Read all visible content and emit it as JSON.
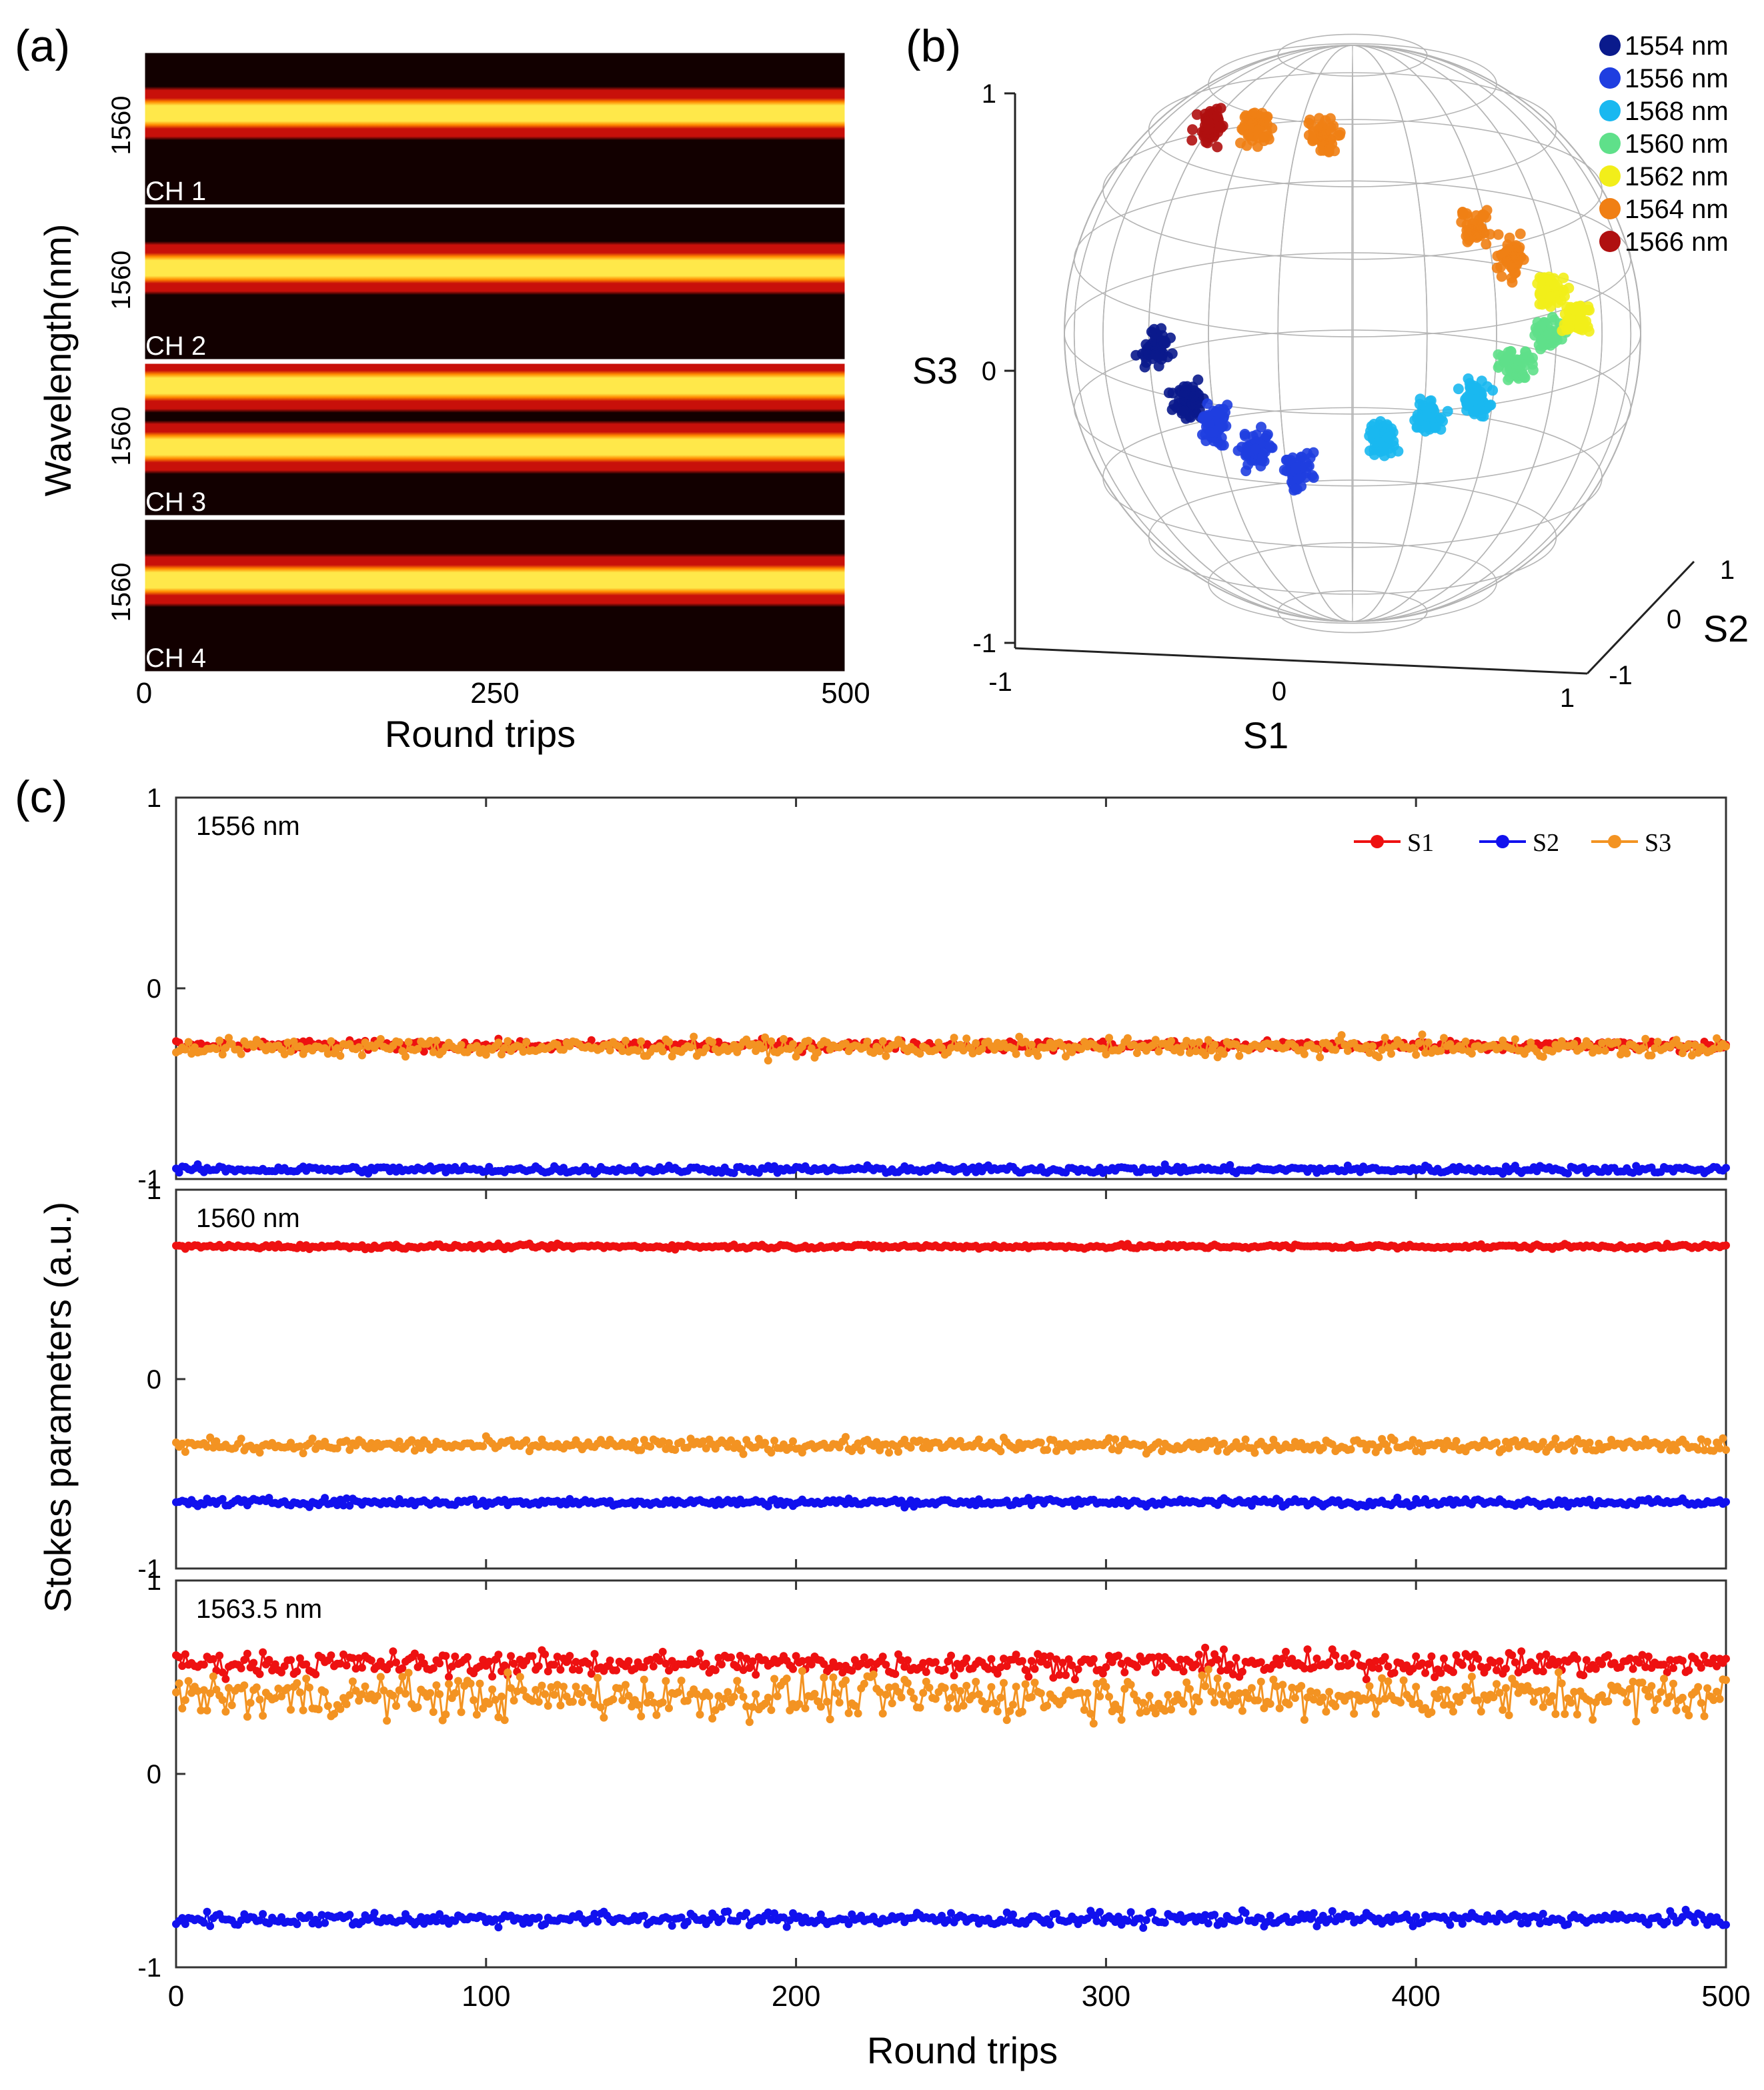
{
  "panel_labels": {
    "a": "(a)",
    "b": "(b)",
    "c": "(c)"
  },
  "colors": {
    "heat_dark": "#120000",
    "heat_mid": "#c8100a",
    "heat_hot": "#ff8a00",
    "heat_peak": "#ffe84a",
    "s1": "#ee1111",
    "s2": "#1111ee",
    "s3": "#f39322"
  },
  "chart_data": [
    {
      "id": "a",
      "type": "heatmap",
      "title": "",
      "xlabel": "Round trips",
      "ylabel": "Wavelength(nm)",
      "xlim": [
        0,
        500
      ],
      "x_ticks": [
        0,
        250,
        500
      ],
      "x_tick_labels": [
        "0",
        "250",
        "500"
      ],
      "channels": [
        {
          "name": "CH 1",
          "y_tick_label": "1560",
          "peaks": [
            0.6
          ]
        },
        {
          "name": "CH 2",
          "y_tick_label": "1560",
          "peaks": [
            0.6
          ]
        },
        {
          "name": "CH 3",
          "y_tick_label": "1560",
          "peaks": [
            0.85,
            0.45
          ]
        },
        {
          "name": "CH 4",
          "y_tick_label": "1560",
          "peaks": [
            0.6
          ]
        }
      ]
    },
    {
      "id": "b",
      "type": "scatter",
      "title": "",
      "axes": {
        "S1": {
          "label": "S1",
          "range": [
            -1,
            1
          ],
          "ticks": [
            "-1",
            "0",
            "1"
          ]
        },
        "S2": {
          "label": "S2",
          "range": [
            -1,
            1
          ],
          "ticks": [
            "-1",
            "0",
            "1"
          ]
        },
        "S3": {
          "label": "S3",
          "range": [
            -1,
            1
          ],
          "ticks": [
            "-1",
            "0",
            "1"
          ]
        }
      },
      "legend_position": "top-right",
      "series": [
        {
          "name": "1554 nm",
          "color": "#0a1a8c",
          "clusters": [
            [
              -0.72,
              -0.3,
              -0.05
            ],
            [
              -0.6,
              -0.3,
              -0.25
            ]
          ]
        },
        {
          "name": "1556 nm",
          "color": "#1f3ee0",
          "clusters": [
            [
              -0.5,
              -0.3,
              -0.33
            ],
            [
              -0.35,
              -0.3,
              -0.42
            ],
            [
              -0.2,
              -0.3,
              -0.5
            ]
          ]
        },
        {
          "name": "1568 nm",
          "color": "#19b8f0",
          "clusters": [
            [
              0.1,
              -0.3,
              -0.38
            ],
            [
              0.28,
              -0.3,
              -0.3
            ],
            [
              0.45,
              -0.3,
              -0.24
            ]
          ]
        },
        {
          "name": "1560 nm",
          "color": "#5fe08a",
          "clusters": [
            [
              0.6,
              -0.3,
              -0.12
            ],
            [
              0.72,
              -0.3,
              0.0
            ]
          ]
        },
        {
          "name": "1562 nm",
          "color": "#f2ee1a",
          "clusters": [
            [
              0.82,
              -0.3,
              0.06
            ],
            [
              0.72,
              -0.3,
              0.16
            ]
          ]
        },
        {
          "name": "1564 nm",
          "color": "#f07f14",
          "clusters": [
            [
              0.45,
              -0.3,
              0.38
            ],
            [
              0.58,
              -0.3,
              0.28
            ],
            [
              -0.1,
              -0.3,
              0.72
            ],
            [
              -0.35,
              -0.3,
              0.75
            ]
          ]
        },
        {
          "name": "1566 nm",
          "color": "#b01010",
          "clusters": [
            [
              -0.52,
              -0.3,
              0.76
            ]
          ]
        }
      ]
    },
    {
      "id": "c",
      "type": "line",
      "title": "",
      "xlabel": "Round trips",
      "ylabel": "Stokes parameters (a.u.)",
      "xlim": [
        0,
        500
      ],
      "ylim": [
        -1,
        1
      ],
      "x_tick_labels": [
        "0",
        "100",
        "200",
        "300",
        "400",
        "500"
      ],
      "y_tick_labels": [
        "-1",
        "0",
        "1"
      ],
      "legend_position": "top-right",
      "legend": [
        "S1",
        "S2",
        "S3"
      ],
      "subplots": [
        {
          "label": "1556 nm",
          "series": [
            {
              "name": "S1",
              "mean": -0.3,
              "noise": 0.025
            },
            {
              "name": "S2",
              "mean": -0.95,
              "noise": 0.02
            },
            {
              "name": "S3",
              "mean": -0.31,
              "noise": 0.045
            }
          ]
        },
        {
          "label": "1560 nm",
          "series": [
            {
              "name": "S1",
              "mean": 0.7,
              "noise": 0.012
            },
            {
              "name": "S2",
              "mean": -0.65,
              "noise": 0.02
            },
            {
              "name": "S3",
              "mean": -0.35,
              "noise": 0.035
            }
          ]
        },
        {
          "label": "1563.5 nm",
          "series": [
            {
              "name": "S1",
              "mean": 0.57,
              "noise": 0.06
            },
            {
              "name": "S2",
              "mean": -0.75,
              "noise": 0.035
            },
            {
              "name": "S3",
              "mean": 0.4,
              "noise": 0.11
            }
          ]
        }
      ]
    }
  ]
}
